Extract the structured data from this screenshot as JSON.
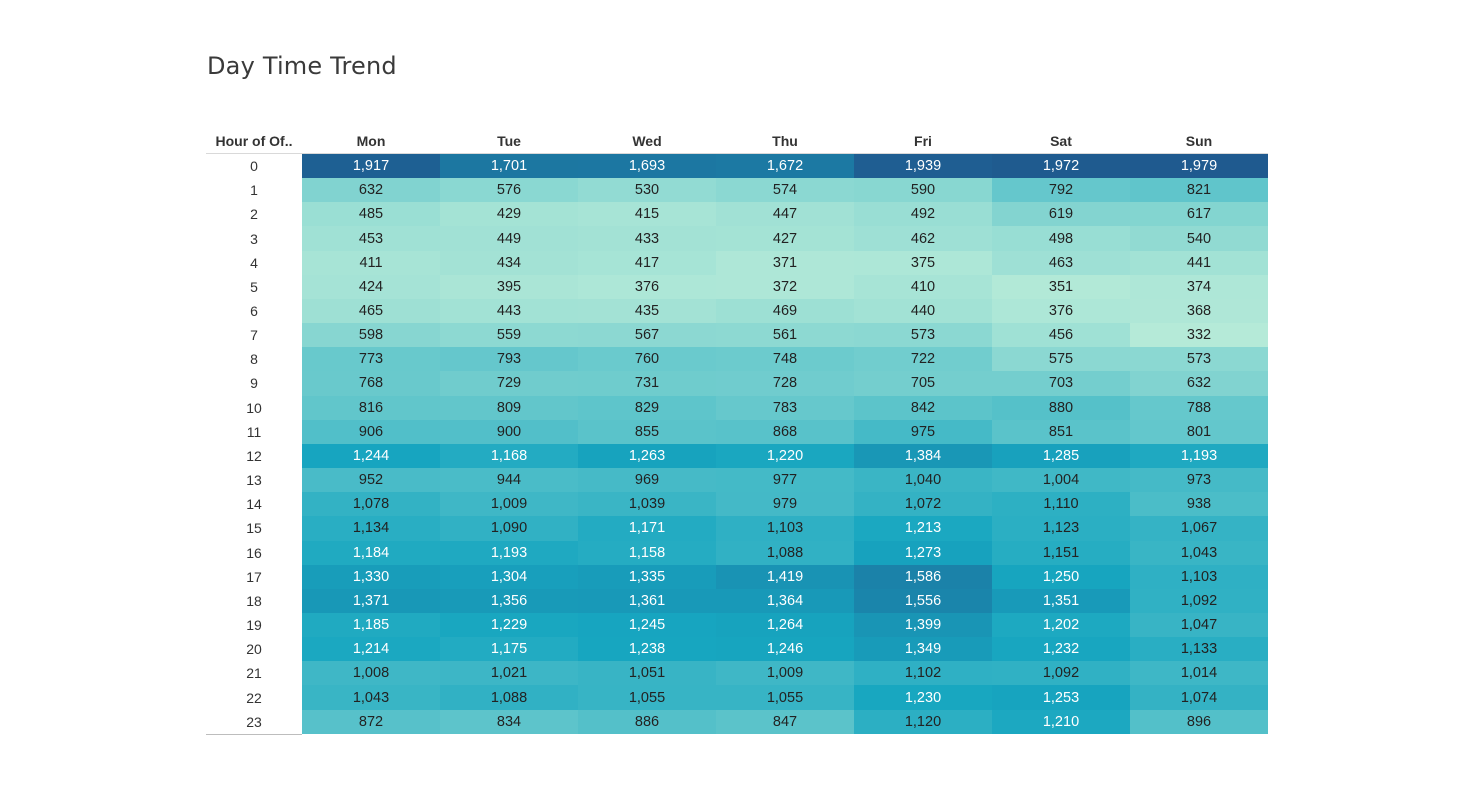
{
  "title": "Day Time Trend",
  "chart_data": {
    "type": "heatmap",
    "title": "Day Time Trend",
    "row_header": "Hour of Of..",
    "columns": [
      "Mon",
      "Tue",
      "Wed",
      "Thu",
      "Fri",
      "Sat",
      "Sun"
    ],
    "rows": [
      "0",
      "1",
      "2",
      "3",
      "4",
      "5",
      "6",
      "7",
      "8",
      "9",
      "10",
      "11",
      "12",
      "13",
      "14",
      "15",
      "16",
      "17",
      "18",
      "19",
      "20",
      "21",
      "22",
      "23"
    ],
    "values": [
      [
        1917,
        1701,
        1693,
        1672,
        1939,
        1972,
        1979
      ],
      [
        632,
        576,
        530,
        574,
        590,
        792,
        821
      ],
      [
        485,
        429,
        415,
        447,
        492,
        619,
        617
      ],
      [
        453,
        449,
        433,
        427,
        462,
        498,
        540
      ],
      [
        411,
        434,
        417,
        371,
        375,
        463,
        441
      ],
      [
        424,
        395,
        376,
        372,
        410,
        351,
        374
      ],
      [
        465,
        443,
        435,
        469,
        440,
        376,
        368
      ],
      [
        598,
        559,
        567,
        561,
        573,
        456,
        332
      ],
      [
        773,
        793,
        760,
        748,
        722,
        575,
        573
      ],
      [
        768,
        729,
        731,
        728,
        705,
        703,
        632
      ],
      [
        816,
        809,
        829,
        783,
        842,
        880,
        788
      ],
      [
        906,
        900,
        855,
        868,
        975,
        851,
        801
      ],
      [
        1244,
        1168,
        1263,
        1220,
        1384,
        1285,
        1193
      ],
      [
        952,
        944,
        969,
        977,
        1040,
        1004,
        973
      ],
      [
        1078,
        1009,
        1039,
        979,
        1072,
        1110,
        938
      ],
      [
        1134,
        1090,
        1171,
        1103,
        1213,
        1123,
        1067
      ],
      [
        1184,
        1193,
        1158,
        1088,
        1273,
        1151,
        1043
      ],
      [
        1330,
        1304,
        1335,
        1419,
        1586,
        1250,
        1103
      ],
      [
        1371,
        1356,
        1361,
        1364,
        1556,
        1351,
        1092
      ],
      [
        1185,
        1229,
        1245,
        1264,
        1399,
        1202,
        1047
      ],
      [
        1214,
        1175,
        1238,
        1246,
        1349,
        1232,
        1133
      ],
      [
        1008,
        1021,
        1051,
        1009,
        1102,
        1092,
        1014
      ],
      [
        1043,
        1088,
        1055,
        1055,
        1230,
        1253,
        1074
      ],
      [
        872,
        834,
        886,
        847,
        1120,
        1210,
        896
      ]
    ],
    "color_scale": {
      "low": "#b5ead8",
      "mid": "#17a6c0",
      "high": "#1f5a8f"
    }
  }
}
